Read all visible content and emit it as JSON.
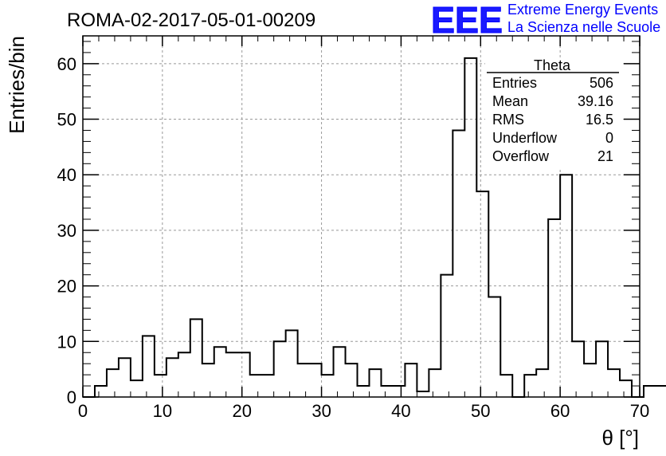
{
  "chart_data": {
    "type": "bar",
    "title": "ROMA-02-2017-05-01-00209",
    "xlabel": "θ [°]",
    "ylabel": "Entries/bin",
    "xlim": [
      0,
      70
    ],
    "ylim": [
      0,
      65
    ],
    "xticks": [
      0,
      10,
      20,
      30,
      40,
      50,
      60,
      70
    ],
    "yticks": [
      0,
      10,
      20,
      30,
      40,
      50,
      60
    ],
    "grid": true,
    "bin_width": 1.5,
    "bin_start": 0,
    "values": [
      0,
      2,
      5,
      7,
      3,
      11,
      4,
      7,
      8,
      14,
      6,
      9,
      8,
      8,
      4,
      4,
      10,
      12,
      6,
      6,
      4,
      9,
      6,
      2,
      5,
      2,
      2,
      6,
      1,
      5,
      22,
      48,
      61,
      37,
      18,
      4,
      0,
      4,
      5,
      32,
      40,
      10,
      6,
      10,
      5,
      3,
      0,
      2,
      2,
      0
    ],
    "stats_box": {
      "name": "Theta",
      "rows": [
        {
          "label": "Entries",
          "value": "506"
        },
        {
          "label": "Mean",
          "value": "39.16"
        },
        {
          "label": "RMS",
          "value": "16.5"
        },
        {
          "label": "Underflow",
          "value": "0"
        },
        {
          "label": "Overflow",
          "value": "21"
        }
      ]
    }
  },
  "logo": {
    "mark": "EEE",
    "line1": "Extreme Energy Events",
    "line2": "La Scienza nelle Scuole",
    "color": "#0000ff"
  },
  "colors": {
    "line": "#000000",
    "grid": "#999999"
  }
}
